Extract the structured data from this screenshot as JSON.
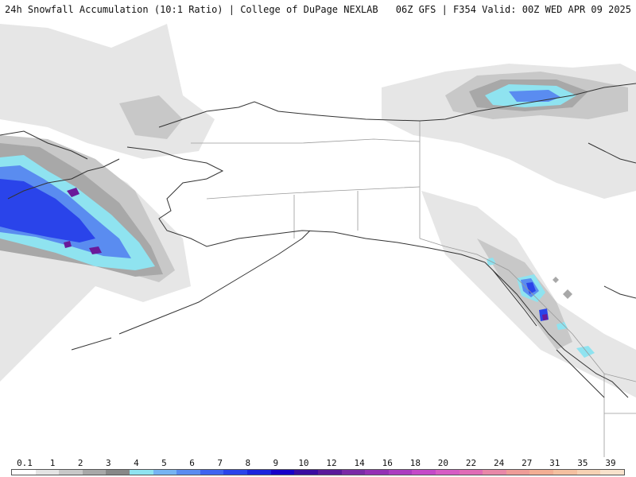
{
  "header": {
    "left": "24h Snowfall Accumulation (10:1 Ratio) | College of DuPage NEXLAB",
    "right": "06Z GFS | F354 Valid: 00Z WED APR 09 2025"
  },
  "legend": {
    "labels": [
      "0.1",
      "1",
      "2",
      "3",
      "4",
      "5",
      "6",
      "7",
      "8",
      "9",
      "10",
      "12",
      "14",
      "16",
      "18",
      "20",
      "22",
      "24",
      "27",
      "31",
      "35",
      "39"
    ],
    "colors": [
      "#ffffff",
      "#e4e4e4",
      "#c8c8c8",
      "#a8a8a8",
      "#888888",
      "#8fe3f0",
      "#76b4f2",
      "#5a8cf0",
      "#3f64f0",
      "#2a44ea",
      "#1c24dc",
      "#1800c8",
      "#3a0da0",
      "#5a1a9a",
      "#7a2aa6",
      "#9430b4",
      "#ac3cc0",
      "#c44ac8",
      "#d65cc4",
      "#e06cb6",
      "#e888a8",
      "#ee9c98",
      "#f2ae94",
      "#f4c0a0",
      "#f6d2b4",
      "#f8e2cc"
    ]
  },
  "colors": {
    "background": "#ffffff",
    "coastline": "#333333",
    "borders": "#9a9a9a"
  }
}
